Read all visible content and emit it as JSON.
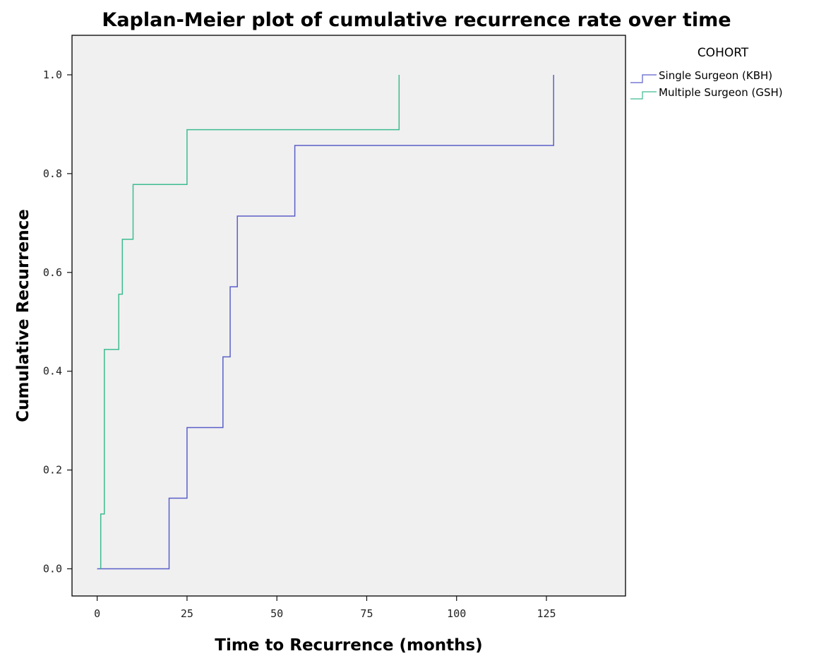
{
  "chart_data": {
    "type": "line",
    "step": true,
    "title": "Kaplan-Meier plot of cumulative recurrence rate over time",
    "xlabel": "Time to Recurrence (months)",
    "ylabel": "Cumulative Recurrence",
    "xlim": [
      -7,
      147
    ],
    "ylim": [
      -0.055,
      1.08
    ],
    "xticks": [
      0,
      25,
      50,
      75,
      100,
      125
    ],
    "xtick_labels": [
      "0",
      "25",
      "50",
      "75",
      "100",
      "125"
    ],
    "yticks": [
      0,
      0.2,
      0.4,
      0.6,
      0.8,
      1.0
    ],
    "ytick_labels": [
      "0.0",
      "0.2",
      "0.4",
      "0.6",
      "0.8",
      "1.0"
    ],
    "grid": false,
    "legend": {
      "title": "COHORT",
      "position": "right"
    },
    "series": [
      {
        "name": "Single Surgeon (KBH)",
        "color": "#5a5fc8",
        "points": [
          [
            0,
            0
          ],
          [
            20,
            0
          ],
          [
            20,
            0.143
          ],
          [
            25,
            0.143
          ],
          [
            25,
            0.286
          ],
          [
            35,
            0.286
          ],
          [
            35,
            0.429
          ],
          [
            37,
            0.429
          ],
          [
            37,
            0.571
          ],
          [
            39,
            0.571
          ],
          [
            39,
            0.714
          ],
          [
            55,
            0.714
          ],
          [
            55,
            0.857
          ],
          [
            127,
            0.857
          ],
          [
            127,
            1.0
          ]
        ]
      },
      {
        "name": "Multiple Surgeon (GSH)",
        "color": "#3dbb8f",
        "points": [
          [
            1,
            0
          ],
          [
            1,
            0.111
          ],
          [
            2,
            0.111
          ],
          [
            2,
            0.444
          ],
          [
            6,
            0.444
          ],
          [
            6,
            0.556
          ],
          [
            7,
            0.556
          ],
          [
            7,
            0.667
          ],
          [
            10,
            0.667
          ],
          [
            10,
            0.778
          ],
          [
            25,
            0.778
          ],
          [
            25,
            0.889
          ],
          [
            84,
            0.889
          ],
          [
            84,
            1.0
          ]
        ]
      }
    ]
  }
}
